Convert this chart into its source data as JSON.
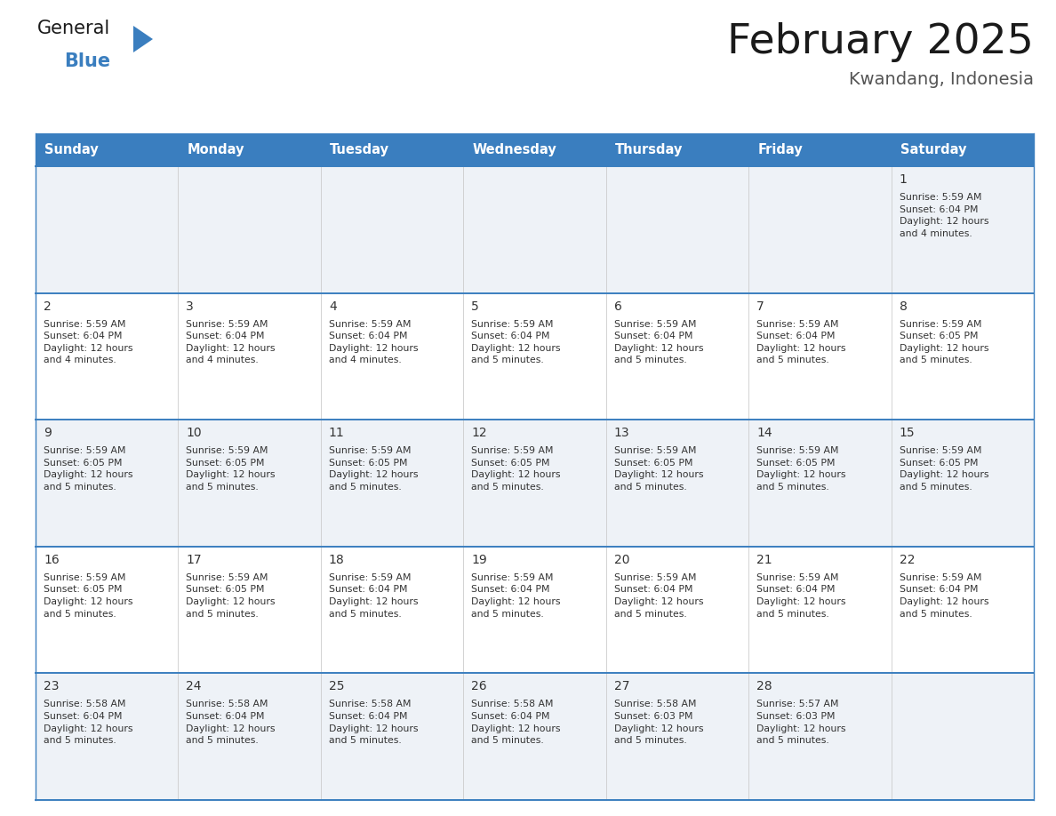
{
  "title": "February 2025",
  "subtitle": "Kwandang, Indonesia",
  "header_bg_color": "#3a7ebf",
  "header_text_color": "#ffffff",
  "row_bg_odd": "#eef2f7",
  "row_bg_even": "#ffffff",
  "border_color": "#3a7ebf",
  "grid_color": "#cccccc",
  "text_color": "#333333",
  "days_of_week": [
    "Sunday",
    "Monday",
    "Tuesday",
    "Wednesday",
    "Thursday",
    "Friday",
    "Saturday"
  ],
  "calendar_data": [
    [
      null,
      null,
      null,
      null,
      null,
      null,
      {
        "day": "1",
        "sunrise": "5:59 AM",
        "sunset": "6:04 PM",
        "daylight": "12 hours\nand 4 minutes."
      }
    ],
    [
      {
        "day": "2",
        "sunrise": "5:59 AM",
        "sunset": "6:04 PM",
        "daylight": "12 hours\nand 4 minutes."
      },
      {
        "day": "3",
        "sunrise": "5:59 AM",
        "sunset": "6:04 PM",
        "daylight": "12 hours\nand 4 minutes."
      },
      {
        "day": "4",
        "sunrise": "5:59 AM",
        "sunset": "6:04 PM",
        "daylight": "12 hours\nand 4 minutes."
      },
      {
        "day": "5",
        "sunrise": "5:59 AM",
        "sunset": "6:04 PM",
        "daylight": "12 hours\nand 5 minutes."
      },
      {
        "day": "6",
        "sunrise": "5:59 AM",
        "sunset": "6:04 PM",
        "daylight": "12 hours\nand 5 minutes."
      },
      {
        "day": "7",
        "sunrise": "5:59 AM",
        "sunset": "6:04 PM",
        "daylight": "12 hours\nand 5 minutes."
      },
      {
        "day": "8",
        "sunrise": "5:59 AM",
        "sunset": "6:05 PM",
        "daylight": "12 hours\nand 5 minutes."
      }
    ],
    [
      {
        "day": "9",
        "sunrise": "5:59 AM",
        "sunset": "6:05 PM",
        "daylight": "12 hours\nand 5 minutes."
      },
      {
        "day": "10",
        "sunrise": "5:59 AM",
        "sunset": "6:05 PM",
        "daylight": "12 hours\nand 5 minutes."
      },
      {
        "day": "11",
        "sunrise": "5:59 AM",
        "sunset": "6:05 PM",
        "daylight": "12 hours\nand 5 minutes."
      },
      {
        "day": "12",
        "sunrise": "5:59 AM",
        "sunset": "6:05 PM",
        "daylight": "12 hours\nand 5 minutes."
      },
      {
        "day": "13",
        "sunrise": "5:59 AM",
        "sunset": "6:05 PM",
        "daylight": "12 hours\nand 5 minutes."
      },
      {
        "day": "14",
        "sunrise": "5:59 AM",
        "sunset": "6:05 PM",
        "daylight": "12 hours\nand 5 minutes."
      },
      {
        "day": "15",
        "sunrise": "5:59 AM",
        "sunset": "6:05 PM",
        "daylight": "12 hours\nand 5 minutes."
      }
    ],
    [
      {
        "day": "16",
        "sunrise": "5:59 AM",
        "sunset": "6:05 PM",
        "daylight": "12 hours\nand 5 minutes."
      },
      {
        "day": "17",
        "sunrise": "5:59 AM",
        "sunset": "6:05 PM",
        "daylight": "12 hours\nand 5 minutes."
      },
      {
        "day": "18",
        "sunrise": "5:59 AM",
        "sunset": "6:04 PM",
        "daylight": "12 hours\nand 5 minutes."
      },
      {
        "day": "19",
        "sunrise": "5:59 AM",
        "sunset": "6:04 PM",
        "daylight": "12 hours\nand 5 minutes."
      },
      {
        "day": "20",
        "sunrise": "5:59 AM",
        "sunset": "6:04 PM",
        "daylight": "12 hours\nand 5 minutes."
      },
      {
        "day": "21",
        "sunrise": "5:59 AM",
        "sunset": "6:04 PM",
        "daylight": "12 hours\nand 5 minutes."
      },
      {
        "day": "22",
        "sunrise": "5:59 AM",
        "sunset": "6:04 PM",
        "daylight": "12 hours\nand 5 minutes."
      }
    ],
    [
      {
        "day": "23",
        "sunrise": "5:58 AM",
        "sunset": "6:04 PM",
        "daylight": "12 hours\nand 5 minutes."
      },
      {
        "day": "24",
        "sunrise": "5:58 AM",
        "sunset": "6:04 PM",
        "daylight": "12 hours\nand 5 minutes."
      },
      {
        "day": "25",
        "sunrise": "5:58 AM",
        "sunset": "6:04 PM",
        "daylight": "12 hours\nand 5 minutes."
      },
      {
        "day": "26",
        "sunrise": "5:58 AM",
        "sunset": "6:04 PM",
        "daylight": "12 hours\nand 5 minutes."
      },
      {
        "day": "27",
        "sunrise": "5:58 AM",
        "sunset": "6:03 PM",
        "daylight": "12 hours\nand 5 minutes."
      },
      {
        "day": "28",
        "sunrise": "5:57 AM",
        "sunset": "6:03 PM",
        "daylight": "12 hours\nand 5 minutes."
      },
      null
    ]
  ],
  "logo_general_color": "#1a1a1a",
  "logo_blue_color": "#3a7ebf",
  "logo_triangle_color": "#3a7ebf",
  "title_color": "#1a1a1a",
  "subtitle_color": "#555555"
}
